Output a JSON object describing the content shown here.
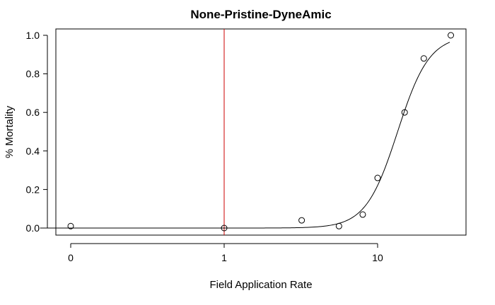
{
  "chart_data": {
    "type": "scatter",
    "title": "None-Pristine-DyneAmic",
    "xlabel": "Field Application Rate",
    "ylabel": "% Mortality",
    "x_scale": "log-with-zero",
    "x_ticks": [
      "0",
      "1",
      "10"
    ],
    "y_ticks": [
      "0.0",
      "0.2",
      "0.4",
      "0.6",
      "0.8",
      "1.0"
    ],
    "ylim": [
      0,
      1
    ],
    "points": [
      {
        "x": 0,
        "y": 0.01
      },
      {
        "x": 1,
        "y": 0.0
      },
      {
        "x": 3.2,
        "y": 0.04
      },
      {
        "x": 5.6,
        "y": 0.01
      },
      {
        "x": 8.0,
        "y": 0.07
      },
      {
        "x": 10.0,
        "y": 0.26
      },
      {
        "x": 15.0,
        "y": 0.6
      },
      {
        "x": 20.0,
        "y": 0.88
      },
      {
        "x": 30.0,
        "y": 1.0
      }
    ],
    "fit_curve": {
      "type": "log-logistic",
      "ec50": 13.5,
      "slope": 4.2
    },
    "reference_line": {
      "x": 1,
      "color": "#cc0000"
    },
    "grid": false,
    "legend": "none"
  }
}
